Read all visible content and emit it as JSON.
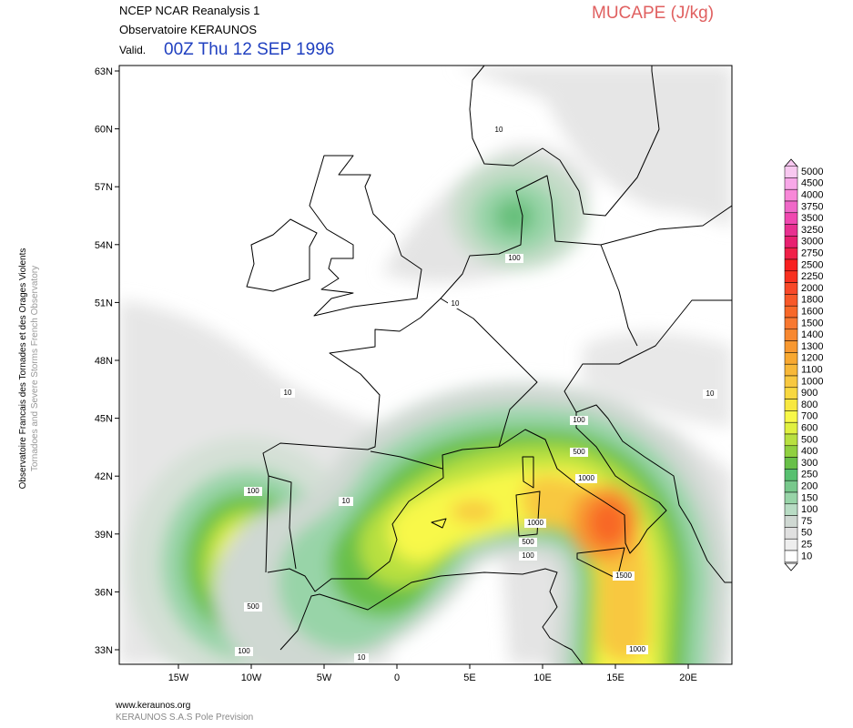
{
  "header": {
    "line1": "NCEP NCAR Reanalysis 1",
    "line2": "Observatoire KERAUNOS",
    "valid_label": "Valid.",
    "valid_time": "00Z Thu 12 SEP 1996",
    "field": "MUCAPE (J/kg)"
  },
  "side_text": {
    "french": "Observatoire Francais des Tornades et des Orages Violents",
    "english": "Tornadoes and Severe Storms French Observatory"
  },
  "lat_ticks": [
    {
      "value": 63,
      "label": "63N"
    },
    {
      "value": 60,
      "label": "60N"
    },
    {
      "value": 57,
      "label": "57N"
    },
    {
      "value": 54,
      "label": "54N"
    },
    {
      "value": 51,
      "label": "51N"
    },
    {
      "value": 48,
      "label": "48N"
    },
    {
      "value": 45,
      "label": "45N"
    },
    {
      "value": 42,
      "label": "42N"
    },
    {
      "value": 39,
      "label": "39N"
    },
    {
      "value": 36,
      "label": "36N"
    },
    {
      "value": 33,
      "label": "33N"
    }
  ],
  "lon_ticks": [
    {
      "value": -15,
      "label": "15W"
    },
    {
      "value": -10,
      "label": "10W"
    },
    {
      "value": -5,
      "label": "5W"
    },
    0,
    {
      "value": 5,
      "label": "5E"
    },
    {
      "value": 10,
      "label": "10E"
    },
    {
      "value": 15,
      "label": "15E"
    },
    {
      "value": 20,
      "label": "20E"
    }
  ],
  "colorbar": {
    "levels": [
      5000,
      4500,
      4000,
      3750,
      3500,
      3250,
      3000,
      2750,
      2500,
      2250,
      2000,
      1800,
      1600,
      1500,
      1400,
      1300,
      1200,
      1100,
      1000,
      900,
      800,
      700,
      600,
      500,
      400,
      300,
      250,
      200,
      150,
      100,
      75,
      50,
      25,
      10
    ],
    "colors": [
      "#f8c8f0",
      "#f8a8e8",
      "#f888d8",
      "#f068c8",
      "#f048b0",
      "#e83090",
      "#e82070",
      "#f02048",
      "#f82020",
      "#f83020",
      "#f84828",
      "#f85828",
      "#f86828",
      "#f87830",
      "#f88830",
      "#f89830",
      "#f8a830",
      "#f8b838",
      "#f8c840",
      "#f8d840",
      "#f8e840",
      "#f8f848",
      "#e0f040",
      "#b8e040",
      "#90d040",
      "#68c048",
      "#58c070",
      "#78c88c",
      "#98d4a8",
      "#b8dcc4",
      "#cfd8d2",
      "#e0e0e0",
      "#eeeeee",
      "#ffffff"
    ]
  },
  "contour_labels": [
    "10",
    "100",
    "10",
    "10",
    "10",
    "100",
    "500",
    "1000",
    "100",
    "10",
    "1000",
    "500",
    "100",
    "1500",
    "500",
    "100",
    "10",
    "1000"
  ],
  "footer": {
    "url": "www.keraunos.org",
    "company": "KERAUNOS S.A.S Pole Prevision"
  }
}
